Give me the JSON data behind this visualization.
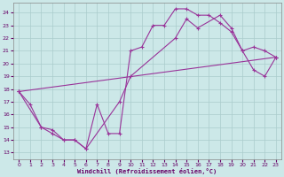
{
  "xlabel": "Windchill (Refroidissement éolien,°C)",
  "background_color": "#cce8e8",
  "grid_color": "#aacccc",
  "line_color": "#993399",
  "xlim": [
    -0.5,
    23.5
  ],
  "ylim": [
    12.5,
    24.8
  ],
  "yticks": [
    13,
    14,
    15,
    16,
    17,
    18,
    19,
    20,
    21,
    22,
    23,
    24
  ],
  "xticks": [
    0,
    1,
    2,
    3,
    4,
    5,
    6,
    7,
    8,
    9,
    10,
    11,
    12,
    13,
    14,
    15,
    16,
    17,
    18,
    19,
    20,
    21,
    22,
    23
  ],
  "line1_x": [
    0,
    1,
    2,
    3,
    4,
    5,
    6,
    7,
    8,
    9,
    10,
    11,
    12,
    13,
    14,
    15,
    16,
    17,
    18,
    19,
    20,
    21,
    22,
    23
  ],
  "line1_y": [
    17.8,
    16.8,
    15.0,
    14.5,
    14.0,
    14.0,
    13.3,
    16.8,
    14.5,
    14.5,
    21.0,
    21.3,
    23.0,
    23.0,
    24.3,
    24.3,
    23.8,
    23.8,
    23.2,
    22.5,
    21.0,
    21.3,
    21.0,
    20.5
  ],
  "line2_x": [
    0,
    2,
    3,
    4,
    5,
    6,
    9,
    10,
    14,
    15,
    16,
    18,
    19,
    20,
    21,
    22,
    23
  ],
  "line2_y": [
    17.8,
    15.0,
    14.8,
    14.0,
    14.0,
    13.3,
    17.0,
    19.0,
    22.0,
    23.5,
    22.8,
    23.8,
    22.8,
    21.0,
    19.5,
    19.0,
    20.5
  ],
  "line3_x": [
    0,
    23
  ],
  "line3_y": [
    17.8,
    20.5
  ]
}
